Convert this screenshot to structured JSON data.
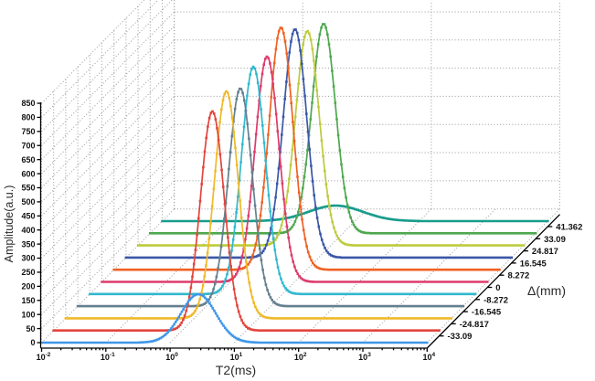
{
  "chart_data": {
    "type": "line",
    "projection": "3d-waterfall",
    "xlabel": "T2(ms)",
    "ylabel": "Amplitude(a.u.)",
    "zlabel": "Δ(mm)",
    "x_scale": "log",
    "x_range_exponents": [
      -2,
      4
    ],
    "x_tick_exponents": [
      -2,
      -1,
      0,
      1,
      2,
      3,
      4
    ],
    "ylim": [
      0,
      850
    ],
    "y_tick_step": 50,
    "y_ticks": [
      0,
      50,
      100,
      150,
      200,
      250,
      300,
      350,
      400,
      450,
      500,
      550,
      600,
      650,
      700,
      750,
      800,
      850
    ],
    "z_tick_labels": [
      "-33.09",
      "-24.817",
      "-16.545",
      "-8.272",
      "0",
      "8.272",
      "16.545",
      "24.817",
      "33.09",
      "41.362"
    ],
    "grid": true,
    "legend_position": "none",
    "series": [
      {
        "delta_label": "",
        "color": "#3F97E8",
        "peak": {
          "center_log10_ms": 0.44,
          "sigma_log10": 0.27,
          "amplitude": 172
        }
      },
      {
        "delta_label": "-33.09",
        "color": "#E2453C",
        "peak": {
          "center_log10_ms": 0.47,
          "sigma_log10": 0.185,
          "amplitude": 778
        }
      },
      {
        "delta_label": "-24.817",
        "color": "#F0B929",
        "peak": {
          "center_log10_ms": 0.5,
          "sigma_log10": 0.185,
          "amplitude": 806
        }
      },
      {
        "delta_label": "-16.545",
        "color": "#64808F",
        "peak": {
          "center_log10_ms": 0.53,
          "sigma_log10": 0.185,
          "amplitude": 773
        }
      },
      {
        "delta_label": "-8.272",
        "color": "#30B8CE",
        "peak": {
          "center_log10_ms": 0.545,
          "sigma_log10": 0.185,
          "amplitude": 807
        }
      },
      {
        "delta_label": "0",
        "color": "#DD3B6B",
        "peak": {
          "center_log10_ms": 0.57,
          "sigma_log10": 0.185,
          "amplitude": 800
        }
      },
      {
        "delta_label": "8.272",
        "color": "#EF6223",
        "peak": {
          "center_log10_ms": 0.6,
          "sigma_log10": 0.185,
          "amplitude": 860
        }
      },
      {
        "delta_label": "16.545",
        "color": "#3A57A7",
        "peak": {
          "center_log10_ms": 0.63,
          "sigma_log10": 0.185,
          "amplitude": 811
        }
      },
      {
        "delta_label": "24.817",
        "color": "#BCCB3C",
        "peak": {
          "center_log10_ms": 0.635,
          "sigma_log10": 0.185,
          "amplitude": 761
        }
      },
      {
        "delta_label": "33.09",
        "color": "#4EA84E",
        "peak": {
          "center_log10_ms": 0.7,
          "sigma_log10": 0.185,
          "amplitude": 744
        }
      },
      {
        "delta_label": "41.362",
        "color": "#189C8C",
        "peak": {
          "center_log10_ms": 0.7,
          "sigma_log10": 0.42,
          "amplitude": 55
        }
      }
    ]
  },
  "colors": {
    "axis": "#000000",
    "grid": "#999999",
    "tick_text": "#111111",
    "title_text": "#2b2b2b",
    "background": "#ffffff"
  }
}
